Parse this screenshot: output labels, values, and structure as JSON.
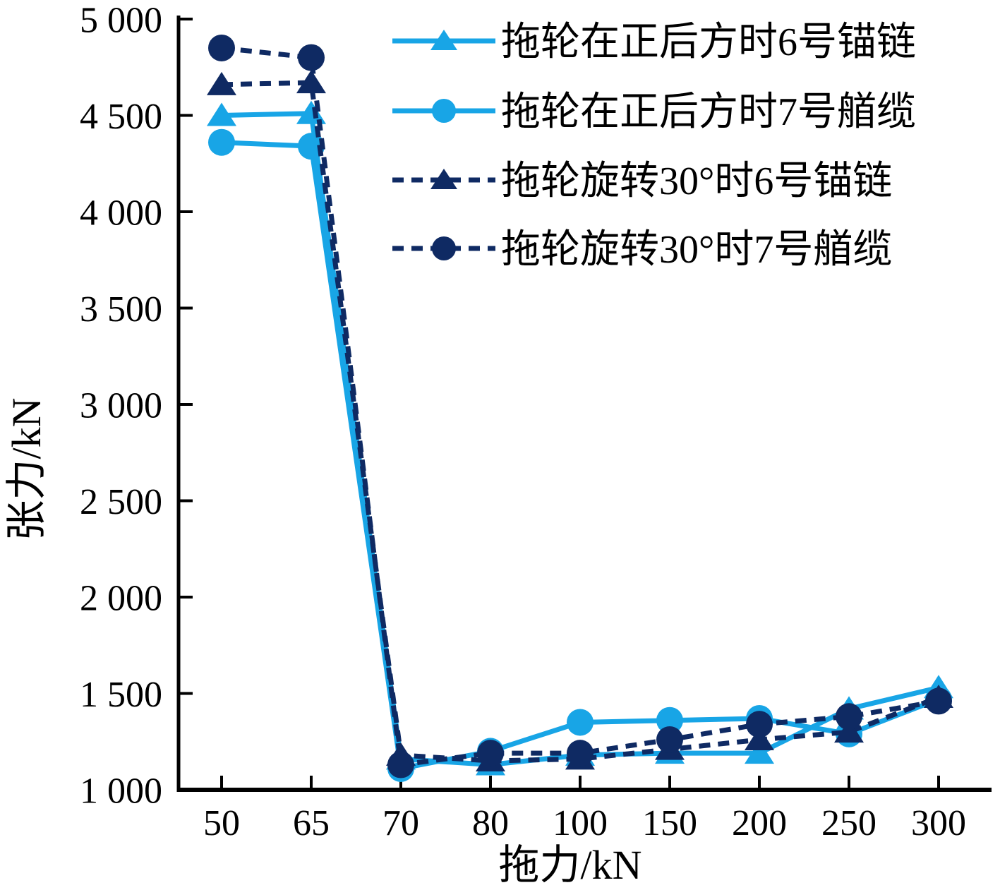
{
  "chart_data": {
    "type": "line",
    "title": "",
    "xlabel": "拖力/kN",
    "ylabel": "张力/kN",
    "x_categories": [
      50,
      65,
      70,
      80,
      100,
      150,
      200,
      250,
      300
    ],
    "x_tick_labels": [
      "50",
      "65",
      "70",
      "80",
      "100",
      "150",
      "200",
      "250",
      "300"
    ],
    "y_tick_values": [
      1000,
      1500,
      2000,
      2500,
      3000,
      3500,
      4000,
      4500,
      5000
    ],
    "y_tick_labels": [
      "1 000",
      "1 500",
      "2 000",
      "2 500",
      "3 000",
      "3 500",
      "4 000",
      "4 500",
      "5 000"
    ],
    "ylim": [
      1000,
      5000
    ],
    "grid": false,
    "legend_position": "top-right-inside",
    "axis_color": "#000000",
    "series": [
      {
        "name": "拖轮在正后方时6号锚链",
        "color": "#18A5E6",
        "marker": "triangle",
        "line": "solid",
        "values": [
          4500,
          4510,
          1160,
          1130,
          1180,
          1190,
          1190,
          1420,
          1530
        ]
      },
      {
        "name": "拖轮在正后方时7号艏缆",
        "color": "#18A5E6",
        "marker": "circle",
        "line": "solid",
        "values": [
          4360,
          4340,
          1110,
          1200,
          1350,
          1360,
          1370,
          1290,
          1470
        ]
      },
      {
        "name": "拖轮旋转30°时6号锚链",
        "color": "#0F2A63",
        "marker": "triangle",
        "line": "dashed",
        "values": [
          4660,
          4670,
          1180,
          1150,
          1160,
          1210,
          1260,
          1300,
          1480
        ]
      },
      {
        "name": "拖轮旋转30°时7号艏缆",
        "color": "#0F2A63",
        "marker": "circle",
        "line": "dashed",
        "values": [
          4850,
          4800,
          1130,
          1190,
          1190,
          1260,
          1340,
          1380,
          1460
        ]
      }
    ]
  }
}
